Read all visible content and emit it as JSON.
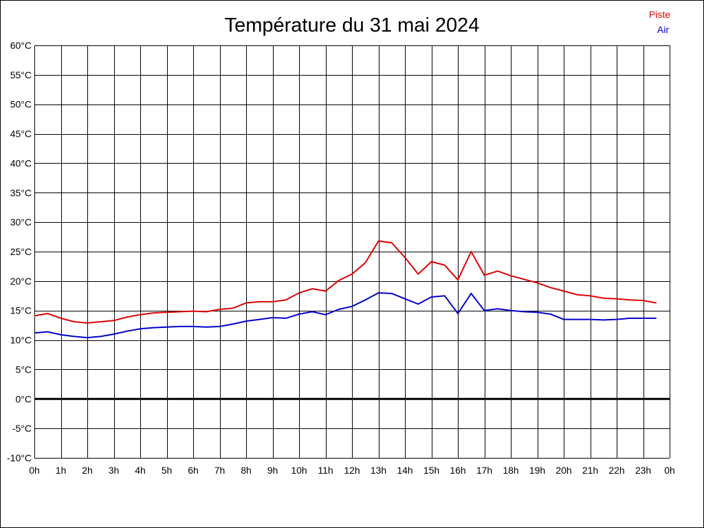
{
  "chart_data": {
    "type": "line",
    "title": "Température du 31 mai 2024",
    "xlabel": "",
    "ylabel": "",
    "x_tick_labels": [
      "0h",
      "1h",
      "2h",
      "3h",
      "4h",
      "5h",
      "6h",
      "7h",
      "8h",
      "9h",
      "10h",
      "11h",
      "12h",
      "13h",
      "14h",
      "15h",
      "16h",
      "17h",
      "18h",
      "19h",
      "20h",
      "21h",
      "22h",
      "23h",
      "0h"
    ],
    "y_tick_labels": [
      "60°C",
      "55°C",
      "50°C",
      "45°C",
      "40°C",
      "35°C",
      "30°C",
      "25°C",
      "20°C",
      "15°C",
      "10°C",
      "5°C",
      "0°C",
      "-5°C",
      "-10°C"
    ],
    "xlim": [
      0,
      24
    ],
    "ylim": [
      -10,
      60
    ],
    "grid": true,
    "legend_position": "top-right",
    "series": [
      {
        "name": "Piste",
        "color": "#dd0000",
        "x": [
          0,
          0.5,
          1,
          1.5,
          2,
          2.5,
          3,
          3.5,
          4,
          4.5,
          5,
          5.5,
          6,
          6.5,
          7,
          7.5,
          8,
          8.5,
          9,
          9.5,
          10,
          10.5,
          11,
          11.5,
          12,
          12.5,
          13,
          13.5,
          14,
          14.5,
          15,
          15.5,
          16,
          16.5,
          17,
          17.5,
          18,
          18.5,
          19,
          19.5,
          20,
          20.5,
          21,
          21.5,
          22,
          22.5,
          23,
          23.5
        ],
        "y": [
          14.1,
          14.5,
          13.7,
          13.1,
          12.9,
          13.1,
          13.3,
          13.9,
          14.3,
          14.6,
          14.7,
          14.8,
          14.9,
          14.8,
          15.2,
          15.4,
          16.3,
          16.5,
          16.5,
          16.8,
          18.0,
          18.7,
          18.3,
          20.1,
          21.2,
          23.1,
          26.8,
          26.5,
          24.0,
          21.2,
          23.3,
          22.7,
          20.2,
          25.0,
          21.0,
          21.7,
          20.9,
          20.3,
          19.7,
          18.9,
          18.3,
          17.7,
          17.5,
          17.1,
          17.0,
          16.8,
          16.7,
          16.3
        ]
      },
      {
        "name": "Air",
        "color": "#0000cc",
        "x": [
          0,
          0.5,
          1,
          1.5,
          2,
          2.5,
          3,
          3.5,
          4,
          4.5,
          5,
          5.5,
          6,
          6.5,
          7,
          7.5,
          8,
          8.5,
          9,
          9.5,
          10,
          10.5,
          11,
          11.5,
          12,
          12.5,
          13,
          13.5,
          14,
          14.5,
          15,
          15.5,
          16,
          16.5,
          17,
          17.5,
          18,
          18.5,
          19,
          19.5,
          20,
          20.5,
          21,
          21.5,
          22,
          22.5,
          23,
          23.5
        ],
        "y": [
          11.2,
          11.4,
          10.9,
          10.6,
          10.4,
          10.6,
          11.0,
          11.5,
          11.9,
          12.1,
          12.2,
          12.3,
          12.3,
          12.2,
          12.3,
          12.7,
          13.2,
          13.5,
          13.8,
          13.7,
          14.4,
          14.8,
          14.3,
          15.2,
          15.7,
          16.8,
          18.0,
          17.9,
          17.0,
          16.1,
          17.3,
          17.5,
          14.5,
          17.9,
          15.0,
          15.3,
          15.0,
          14.8,
          14.7,
          14.4,
          13.5,
          13.5,
          13.5,
          13.4,
          13.5,
          13.7,
          13.7,
          13.7
        ]
      }
    ]
  }
}
